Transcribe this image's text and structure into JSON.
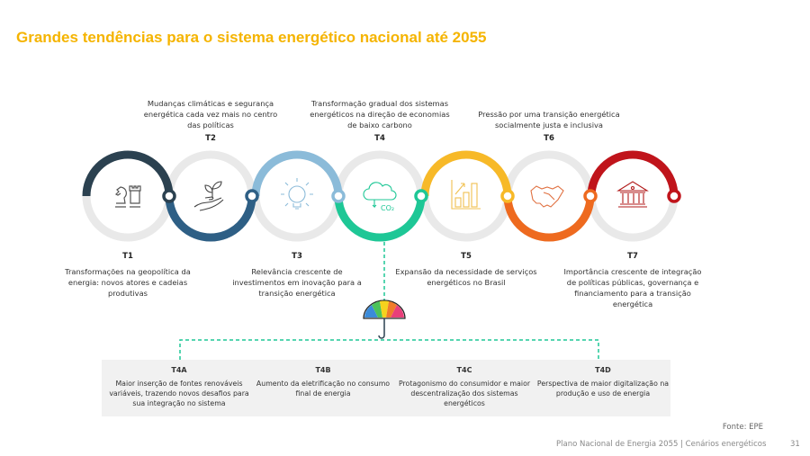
{
  "title": "Grandes tendências para o sistema energético nacional até 2055",
  "trends": [
    {
      "id": "T1",
      "text": "Transformações na geopolítica da energia: novos atores e cadeias produtivas",
      "icon": "chess-icon",
      "color": "#2b4150"
    },
    {
      "id": "T2",
      "text": "Mudanças climáticas e segurança energética cada vez mais no centro das políticas",
      "icon": "plant-hand-icon",
      "color": "#2e5f85"
    },
    {
      "id": "T3",
      "text": "Relevância crescente de investimentos em inovação para a transição energética",
      "icon": "lightbulb-icon",
      "color": "#8bbbd9"
    },
    {
      "id": "T4",
      "text": "Transformação gradual dos sistemas energéticos na direção de economias de baixo carbono",
      "icon": "cloud-co2-icon",
      "color": "#1ec796",
      "icon_text": "CO₂"
    },
    {
      "id": "T5",
      "text": "Expansão da necessidade de serviços energéticos no Brasil",
      "icon": "growth-chart-icon",
      "color": "#f7b928"
    },
    {
      "id": "T6",
      "text": "Pressão por uma transição energética socialmente justa e inclusiva",
      "icon": "handshake-icon",
      "color": "#ee6a1f"
    },
    {
      "id": "T7",
      "text": "Importância crescente de integração de políticas públicas, governança e financiamento para a transição energética",
      "icon": "institution-icon",
      "color": "#c0141b"
    }
  ],
  "subtrends": [
    {
      "id": "T4A",
      "text": "Maior inserção de fontes renováveis variáveis, trazendo novos desafios para sua integração no sistema"
    },
    {
      "id": "T4B",
      "text": "Aumento da eletrificação no consumo final de energia"
    },
    {
      "id": "T4C",
      "text": "Protagonismo do consumidor e maior descentralização dos sistemas energéticos"
    },
    {
      "id": "T4D",
      "text": "Perspectiva de maior digitalização na produção e uso de energia"
    }
  ],
  "source": "Fonte: EPE",
  "footer": "Plano Nacional de Energia 2055  |  Cenários energéticos",
  "page": "31"
}
